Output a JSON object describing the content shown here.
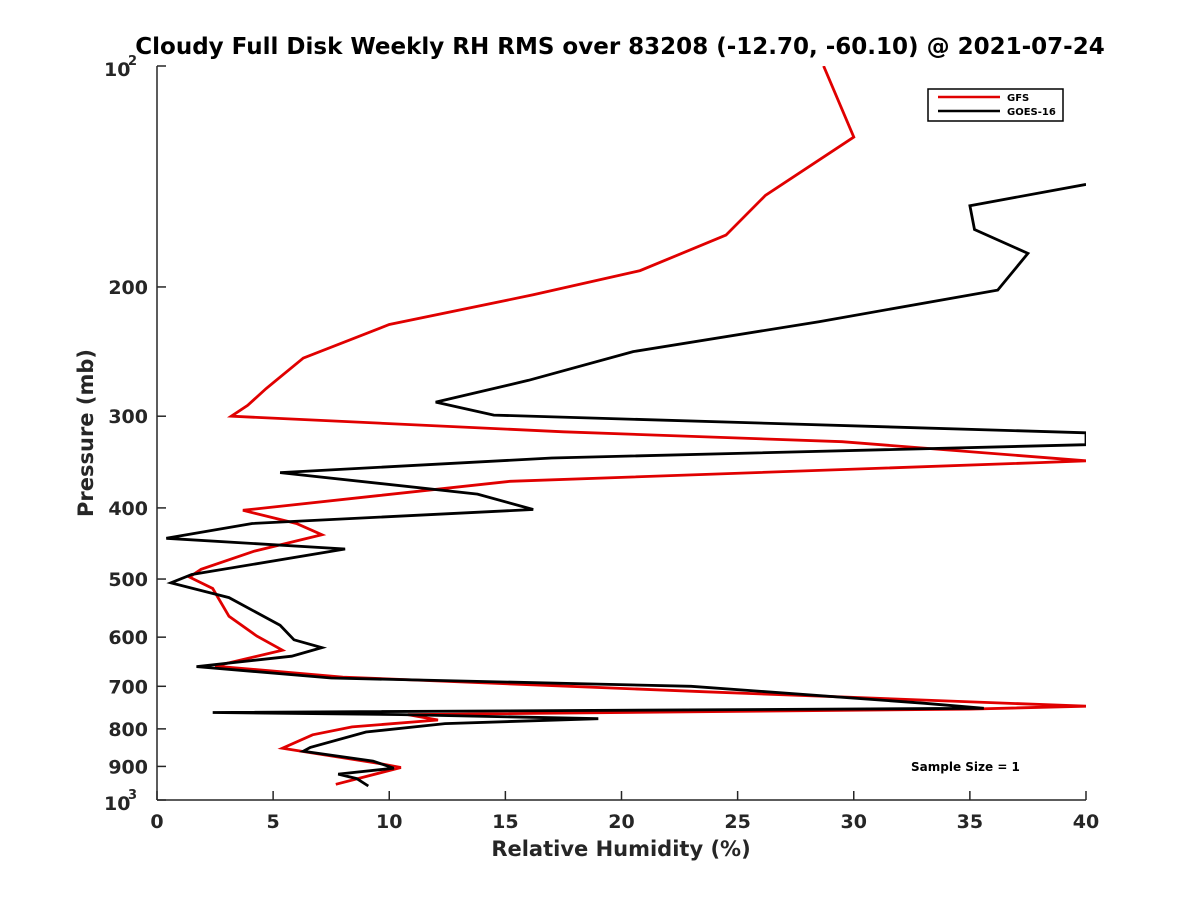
{
  "chart_data": {
    "type": "line",
    "title": "Cloudy Full Disk Weekly RH RMS over 83208 (-12.70, -60.10) @ 2021-07-24",
    "xlabel": "Relative Humidity (%)",
    "ylabel": "Pressure (mb)",
    "xlim": [
      0,
      40
    ],
    "ylim": [
      100,
      1000
    ],
    "yscale": "log",
    "y_reversed": true,
    "grid": false,
    "legend_position": "top-right",
    "x_ticks": [
      {
        "value": 0,
        "label": "0"
      },
      {
        "value": 5,
        "label": "5"
      },
      {
        "value": 10,
        "label": "10"
      },
      {
        "value": 15,
        "label": "15"
      },
      {
        "value": 20,
        "label": "20"
      },
      {
        "value": 25,
        "label": "25"
      },
      {
        "value": 30,
        "label": "30"
      },
      {
        "value": 35,
        "label": "35"
      },
      {
        "value": 40,
        "label": "40"
      }
    ],
    "y_ticks": [
      {
        "value": 100,
        "label": "10",
        "exponent": "2"
      },
      {
        "value": 200,
        "label": "200"
      },
      {
        "value": 300,
        "label": "300"
      },
      {
        "value": 400,
        "label": "400"
      },
      {
        "value": 500,
        "label": "500"
      },
      {
        "value": 600,
        "label": "600"
      },
      {
        "value": 700,
        "label": "700"
      },
      {
        "value": 800,
        "label": "800"
      },
      {
        "value": 900,
        "label": "900"
      },
      {
        "value": 1000,
        "label": "10",
        "exponent": "3"
      }
    ],
    "series": [
      {
        "name": "GFS",
        "color": "#e00000",
        "points": [
          [
            28.7,
            100
          ],
          [
            30.0,
            125
          ],
          [
            26.2,
            150
          ],
          [
            24.5,
            170
          ],
          [
            20.8,
            190
          ],
          [
            16.2,
            205
          ],
          [
            10.0,
            225
          ],
          [
            6.3,
            250
          ],
          [
            4.7,
            275
          ],
          [
            3.9,
            290
          ],
          [
            3.2,
            300
          ],
          [
            17.5,
            315
          ],
          [
            29.5,
            325
          ],
          [
            40.0,
            345
          ],
          [
            38.0,
            347
          ],
          [
            15.2,
            368
          ],
          [
            9.5,
            385
          ],
          [
            3.7,
            403
          ],
          [
            6.0,
            420
          ],
          [
            7.1,
            435
          ],
          [
            4.2,
            458
          ],
          [
            1.9,
            485
          ],
          [
            1.4,
            497
          ],
          [
            2.4,
            515
          ],
          [
            3.1,
            562
          ],
          [
            4.3,
            598
          ],
          [
            5.4,
            625
          ],
          [
            2.5,
            657
          ],
          [
            8.0,
            680
          ],
          [
            23.5,
            712
          ],
          [
            40.0,
            745
          ],
          [
            35.0,
            752
          ],
          [
            10.8,
            765
          ],
          [
            12.1,
            778
          ],
          [
            8.4,
            795
          ],
          [
            6.7,
            815
          ],
          [
            5.4,
            850
          ],
          [
            9.6,
            892
          ],
          [
            10.5,
            903
          ],
          [
            7.7,
            952
          ]
        ]
      },
      {
        "name": "GOES-16",
        "color": "#000000",
        "points": [
          [
            40.0,
            145
          ],
          [
            35.0,
            155
          ],
          [
            35.2,
            167
          ],
          [
            37.5,
            180
          ],
          [
            36.2,
            202
          ],
          [
            28.5,
            223
          ],
          [
            20.5,
            245
          ],
          [
            16.0,
            268
          ],
          [
            12.0,
            287
          ],
          [
            14.5,
            299
          ],
          [
            40.0,
            316
          ],
          [
            40.0,
            328
          ],
          [
            17.0,
            342
          ],
          [
            5.3,
            358
          ],
          [
            13.8,
            383
          ],
          [
            16.2,
            402
          ],
          [
            4.1,
            420
          ],
          [
            0.4,
            440
          ],
          [
            8.1,
            455
          ],
          [
            1.5,
            493
          ],
          [
            0.6,
            506
          ],
          [
            3.1,
            530
          ],
          [
            5.3,
            578
          ],
          [
            5.9,
            605
          ],
          [
            7.1,
            620
          ],
          [
            5.8,
            637
          ],
          [
            1.7,
            658
          ],
          [
            7.5,
            682
          ],
          [
            23.0,
            700
          ],
          [
            33.0,
            738
          ],
          [
            35.6,
            750
          ],
          [
            2.4,
            760
          ],
          [
            10.5,
            765
          ],
          [
            19.0,
            775
          ],
          [
            12.4,
            787
          ],
          [
            9.0,
            808
          ],
          [
            6.6,
            848
          ],
          [
            6.3,
            858
          ],
          [
            9.3,
            885
          ],
          [
            10.2,
            905
          ],
          [
            7.8,
            922
          ],
          [
            8.6,
            935
          ],
          [
            9.1,
            957
          ]
        ]
      }
    ],
    "annotations": [
      "Sample Size = 1"
    ]
  }
}
